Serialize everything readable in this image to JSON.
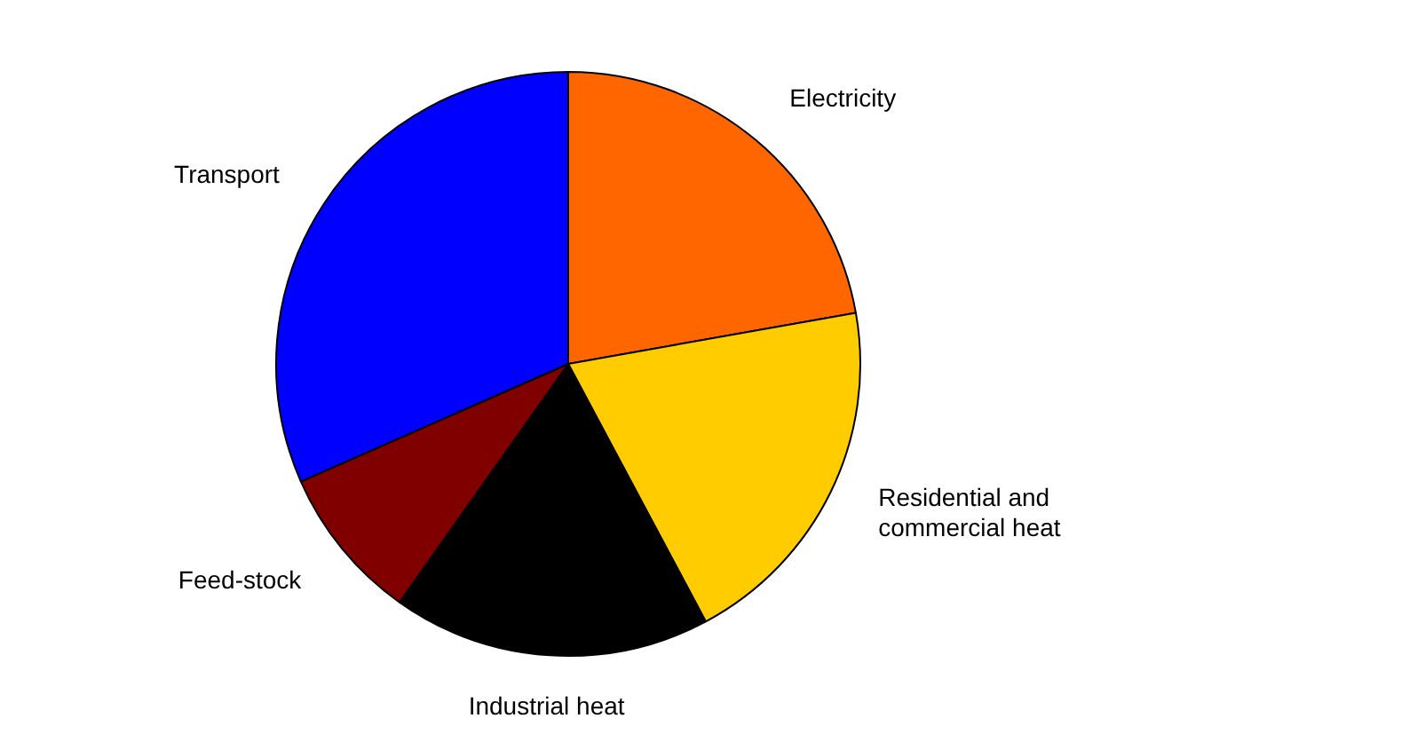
{
  "chart_data": {
    "type": "pie",
    "categories": [
      "Electricity",
      "Residential and commercial heat",
      "Industrial heat",
      "Feed-stock",
      "Transport"
    ],
    "values": [
      22.2,
      20,
      17.6,
      8.6,
      31.6
    ],
    "colors": [
      "#ff6600",
      "#ffcc00",
      "#000000",
      "#800000",
      "#0000ff"
    ],
    "legend": false
  }
}
